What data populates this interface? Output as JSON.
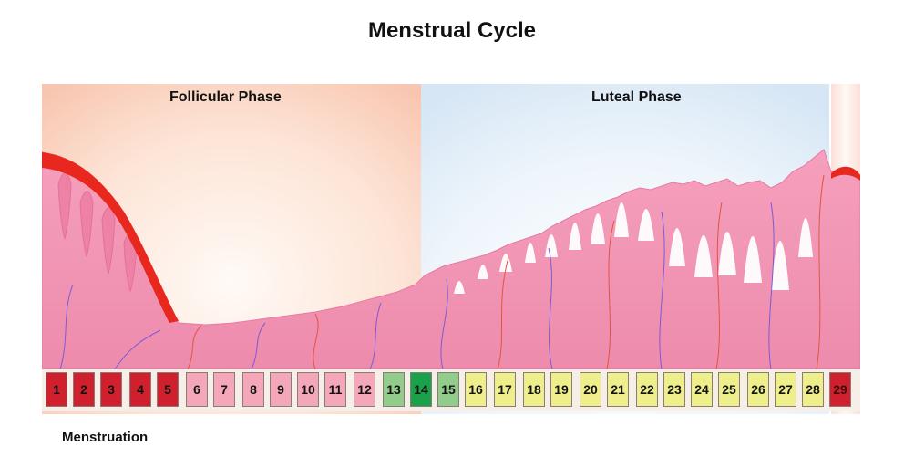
{
  "title": "Menstrual Cycle",
  "phases": {
    "follicular": "Follicular Phase",
    "luteal": "Luteal Phase"
  },
  "days": [
    {
      "label": "1",
      "type": "menstruation"
    },
    {
      "label": "2",
      "type": "menstruation"
    },
    {
      "label": "3",
      "type": "menstruation"
    },
    {
      "label": "4",
      "type": "menstruation"
    },
    {
      "label": "5",
      "type": "menstruation"
    },
    {
      "label": "6",
      "type": "follicular"
    },
    {
      "label": "7",
      "type": "follicular"
    },
    {
      "label": "8",
      "type": "follicular"
    },
    {
      "label": "9",
      "type": "follicular"
    },
    {
      "label": "10",
      "type": "follicular"
    },
    {
      "label": "11",
      "type": "follicular"
    },
    {
      "label": "12",
      "type": "follicular"
    },
    {
      "label": "13",
      "type": "fertile"
    },
    {
      "label": "14",
      "type": "ovulation"
    },
    {
      "label": "15",
      "type": "fertile"
    },
    {
      "label": "16",
      "type": "luteal"
    },
    {
      "label": "17",
      "type": "luteal"
    },
    {
      "label": "18",
      "type": "luteal"
    },
    {
      "label": "19",
      "type": "luteal"
    },
    {
      "label": "20",
      "type": "luteal"
    },
    {
      "label": "21",
      "type": "luteal"
    },
    {
      "label": "22",
      "type": "luteal"
    },
    {
      "label": "23",
      "type": "luteal"
    },
    {
      "label": "24",
      "type": "luteal"
    },
    {
      "label": "25",
      "type": "luteal"
    },
    {
      "label": "26",
      "type": "luteal"
    },
    {
      "label": "27",
      "type": "luteal"
    },
    {
      "label": "28",
      "type": "luteal"
    },
    {
      "label": "29",
      "type": "menstruation"
    }
  ],
  "legend": {
    "menstruation": "Menstruation"
  },
  "colors": {
    "menstruation": "#d0202e",
    "follicular": "#f4a7b9",
    "fertile": "#92cc8a",
    "ovulation": "#1aa24a",
    "luteal": "#eeee8a",
    "tissue": "#f08aae",
    "blood": "#e8281e"
  }
}
